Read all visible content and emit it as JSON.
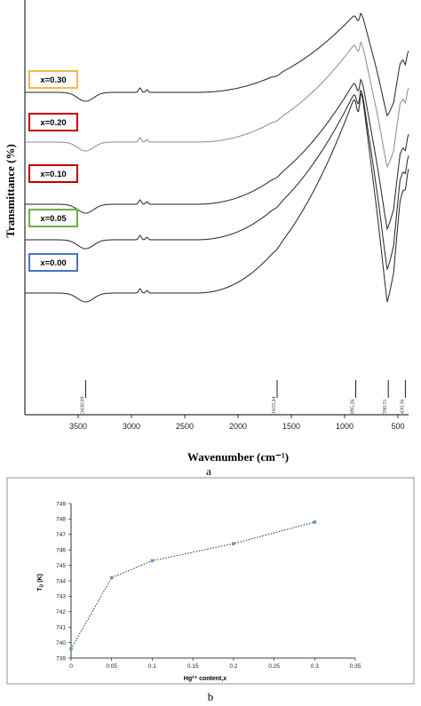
{
  "panel_a_label": "a",
  "panel_b_label": "b",
  "chart_data": [
    {
      "type": "line",
      "title": "",
      "xlabel": "Wavenumber (cm⁻¹)",
      "ylabel": "Transmittance (%)",
      "xlim": [
        4000,
        400
      ],
      "xticks": [
        3500,
        3000,
        2500,
        2000,
        1500,
        1000,
        500
      ],
      "y_tick_labels": false,
      "series": [
        {
          "name": "x=0.30",
          "color": "#222222",
          "legend_border": "#f2b84b"
        },
        {
          "name": "x=0.20",
          "color": "#8a8a8a",
          "legend_border": "#c00000"
        },
        {
          "name": "x=0.10",
          "color": "#222222",
          "legend_border": "#c00000"
        },
        {
          "name": "x=0.05",
          "color": "#222222",
          "legend_border": "#70ad47"
        },
        {
          "name": "x=0.00",
          "color": "#222222",
          "legend_border": "#4472c4"
        }
      ],
      "peak_annotations": [
        {
          "x": 3430.09,
          "label": "3430.09"
        },
        {
          "x": 1633.24,
          "label": "1633.24"
        },
        {
          "x": 895.26,
          "label": "895.26"
        },
        {
          "x": 590.31,
          "label": "590.31"
        },
        {
          "x": 430.36,
          "label": "430.36"
        }
      ]
    },
    {
      "type": "scatter",
      "title": "",
      "xlabel": "Hg²⁺ content,x",
      "ylabel": "T_D (K)",
      "ylabel_main": "T",
      "ylabel_sub": "D",
      "ylabel_unit": " (K)",
      "xlim": [
        0,
        0.35
      ],
      "ylim": [
        739,
        749
      ],
      "xticks": [
        0,
        0.05,
        0.1,
        0.15,
        0.2,
        0.25,
        0.3,
        0.35
      ],
      "xtick_labels": [
        "0",
        "0.05",
        "0.1",
        "0.15",
        "0.2",
        "0.25",
        "0.3",
        "0.35"
      ],
      "yticks": [
        739,
        740,
        741,
        742,
        743,
        744,
        745,
        746,
        747,
        748,
        749
      ],
      "x": [
        0,
        0.05,
        0.1,
        0.2,
        0.3
      ],
      "y": [
        739.6,
        744.2,
        745.3,
        746.4,
        747.8
      ],
      "marker_color": "#5b9bd5",
      "line_style": "dotted",
      "grid": false
    }
  ]
}
